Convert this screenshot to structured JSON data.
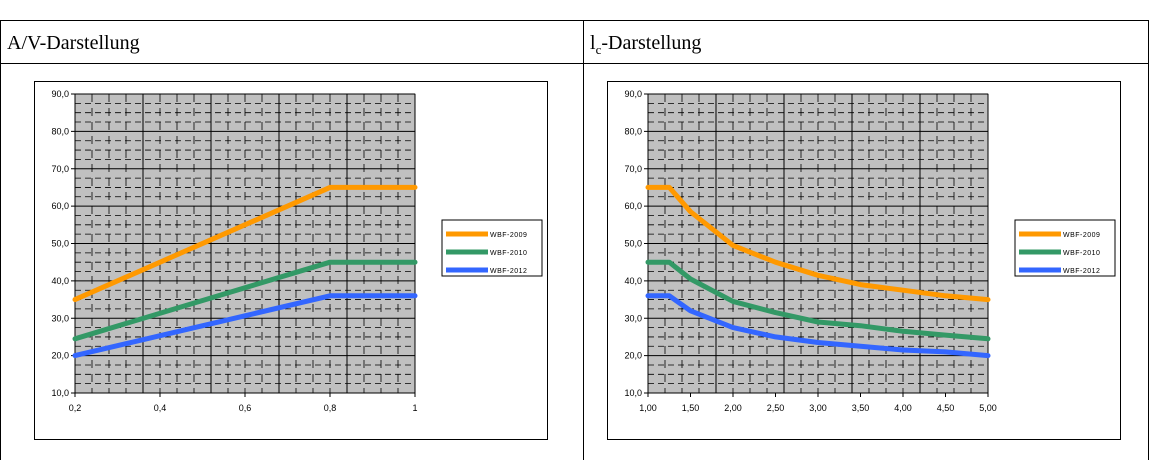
{
  "table": {
    "left_title": "A/V-Darstellung",
    "right_title_main": "l",
    "right_title_sub": "c",
    "right_title_rest": "-Darstellung"
  },
  "colors": {
    "wbf2009": "#FF9900",
    "wbf2010": "#339966",
    "wbf2012": "#3366FF",
    "plot_bg": "#C0C0C0",
    "grid": "#000000"
  },
  "chart_data": [
    {
      "type": "line",
      "title": "",
      "xlabel": "",
      "ylabel": "",
      "x": [
        0.2,
        0.8,
        1.0
      ],
      "x_ticks": [
        "0,2",
        "0,4",
        "0,6",
        "0,8",
        "1"
      ],
      "x_tick_values": [
        0.2,
        0.4,
        0.6,
        0.8,
        1.0
      ],
      "xlim": [
        0.2,
        1.0
      ],
      "ylim": [
        10,
        90
      ],
      "y_ticks": [
        "10,0",
        "20,0",
        "30,0",
        "40,0",
        "50,0",
        "60,0",
        "70,0",
        "80,0",
        "90,0"
      ],
      "y_tick_values": [
        10,
        20,
        30,
        40,
        50,
        60,
        70,
        80,
        90
      ],
      "grid": true,
      "legend": "right",
      "series": [
        {
          "name": "WBF-2009",
          "color_key": "wbf2009",
          "x": [
            0.2,
            0.8,
            1.0
          ],
          "values": [
            35,
            65,
            65
          ]
        },
        {
          "name": "WBF-2010",
          "color_key": "wbf2010",
          "x": [
            0.2,
            0.8,
            1.0
          ],
          "values": [
            24.5,
            45,
            45
          ]
        },
        {
          "name": "WBF-2012",
          "color_key": "wbf2012",
          "x": [
            0.2,
            0.8,
            1.0
          ],
          "values": [
            20,
            36,
            36
          ]
        }
      ]
    },
    {
      "type": "line",
      "title": "",
      "xlabel": "",
      "ylabel": "",
      "xlim": [
        1.0,
        5.0
      ],
      "ylim": [
        10,
        90
      ],
      "x_ticks": [
        "1,00",
        "1,50",
        "2,00",
        "2,50",
        "3,00",
        "3,50",
        "4,00",
        "4,50",
        "5,00"
      ],
      "x_tick_values": [
        1.0,
        1.5,
        2.0,
        2.5,
        3.0,
        3.5,
        4.0,
        4.5,
        5.0
      ],
      "y_ticks": [
        "10,0",
        "20,0",
        "30,0",
        "40,0",
        "50,0",
        "60,0",
        "70,0",
        "80,0",
        "90,0"
      ],
      "y_tick_values": [
        10,
        20,
        30,
        40,
        50,
        60,
        70,
        80,
        90
      ],
      "grid": true,
      "legend": "right",
      "series": [
        {
          "name": "WBF-2009",
          "color_key": "wbf2009",
          "x": [
            1.0,
            1.25,
            1.5,
            2.0,
            2.5,
            3.0,
            3.5,
            4.0,
            4.5,
            5.0
          ],
          "values": [
            65,
            65,
            58.5,
            49.5,
            45,
            41.5,
            39,
            37.5,
            36,
            35
          ]
        },
        {
          "name": "WBF-2010",
          "color_key": "wbf2010",
          "x": [
            1.0,
            1.25,
            1.5,
            2.0,
            2.5,
            3.0,
            3.5,
            4.0,
            4.5,
            5.0
          ],
          "values": [
            45,
            45,
            40.5,
            34.5,
            31.5,
            29,
            28,
            26.5,
            25.5,
            24.5
          ]
        },
        {
          "name": "WBF-2012",
          "color_key": "wbf2012",
          "x": [
            1.0,
            1.25,
            1.5,
            2.0,
            2.5,
            3.0,
            3.5,
            4.0,
            4.5,
            5.0
          ],
          "values": [
            36,
            36,
            32,
            27.5,
            25,
            23.5,
            22.5,
            21.5,
            21,
            20
          ]
        }
      ]
    }
  ]
}
